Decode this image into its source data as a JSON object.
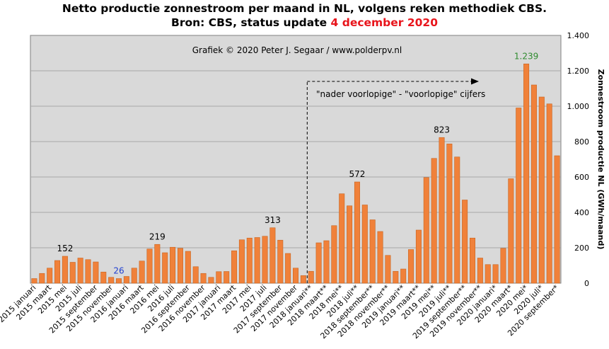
{
  "title": {
    "line1": "Netto productie zonnestroom per maand in NL, volgens reken methodiek CBS.",
    "line2_prefix": "Bron: CBS, status update ",
    "line2_date": "4 december 2020"
  },
  "credit": "Grafiek  © 2020  Peter J. Segaar / www.polderpv.nl",
  "arrow_label": "\"nader  voorlopige\"  - \"voorlopige\"  cijfers",
  "colors": {
    "bar": "#f0813a",
    "bar_edge": "#c86520",
    "plot_bg": "#d9d9d9",
    "grid": "#a6a6a6",
    "peak_label": "#2e8b2e",
    "min_label": "#1f3fd0",
    "date": "#e8141b"
  },
  "chart_data": {
    "type": "bar",
    "ylabel": "Zonnestroom productie NL (GWh/maand)",
    "ylim": [
      0,
      1400
    ],
    "yticks": [
      0,
      200,
      400,
      600,
      800,
      1000,
      1200,
      1400
    ],
    "ytick_labels": [
      "0",
      "200",
      "400",
      "600",
      "800",
      "1.000",
      "1.200",
      "1.400"
    ],
    "y_axis_side": "right",
    "grid": true,
    "categories": [
      "2015 januari",
      "2015 februari",
      "2015 maart",
      "2015 april",
      "2015 mei",
      "2015 juni",
      "2015 juli",
      "2015 augustus",
      "2015 september",
      "2015 oktober",
      "2015 november",
      "2015 december",
      "2016 januari",
      "2016 februari",
      "2016 maart",
      "2016 april",
      "2016 mei",
      "2016 juni",
      "2016 juli",
      "2016 augustus",
      "2016 september",
      "2016 oktober",
      "2016 november",
      "2016 december",
      "2017 januari",
      "2017 februari",
      "2017 maart",
      "2017 april",
      "2017 mei",
      "2017 juni",
      "2017 juli",
      "2017 augustus",
      "2017 september",
      "2017 oktober",
      "2017 november",
      "2017 december",
      "2018 januari**",
      "2018 februari**",
      "2018 maart**",
      "2018 april**",
      "2018 mei**",
      "2018 juni**",
      "2018 juli**",
      "2018 augustus**",
      "2018 september**",
      "2018 oktober**",
      "2018 november**",
      "2018 december**",
      "2019 januari**",
      "2019 februari**",
      "2019 maart**",
      "2019 april**",
      "2019 mei**",
      "2019 juni**",
      "2019 juli**",
      "2019 augustus**",
      "2019 september**",
      "2019 oktober**",
      "2019 november**",
      "2019 december**",
      "2020 januari*",
      "2020 februari*",
      "2020 maart*",
      "2020 april*",
      "2020 mei*",
      "2020 juni*",
      "2020 juli*",
      "2020 augustus*",
      "2020 september*"
    ],
    "visible_tick_labels": [
      "2015 januari",
      "2015 maart",
      "2015 mei",
      "2015 juli",
      "2015 september",
      "2015 november",
      "2016 januari",
      "2016 maart",
      "2016 mei",
      "2016 juli",
      "2016 september",
      "2016 november",
      "2017 januari",
      "2017 maart",
      "2017 mei",
      "2017 juli",
      "2017 september",
      "2017 november",
      "2018 januari**",
      "2018 maart**",
      "2018 mei**",
      "2018 juli**",
      "2018 september**",
      "2018 november**",
      "2019 januari**",
      "2019 maart**",
      "2019 mei**",
      "2019 juli**",
      "2019 september**",
      "2019 november**",
      "2020 januari*",
      "2020 maart*",
      "2020 mei*",
      "2020 juli*",
      "2020 september*"
    ],
    "values": [
      26,
      55,
      85,
      128,
      152,
      118,
      142,
      133,
      120,
      63,
      33,
      26,
      38,
      85,
      125,
      193,
      219,
      172,
      203,
      197,
      180,
      93,
      55,
      33,
      65,
      66,
      183,
      245,
      255,
      258,
      265,
      313,
      243,
      168,
      85,
      43,
      67,
      228,
      240,
      325,
      505,
      437,
      572,
      442,
      358,
      292,
      157,
      67,
      80,
      190,
      300,
      597,
      705,
      823,
      787,
      713,
      470,
      255,
      142,
      105,
      105,
      197,
      590,
      990,
      1239,
      1120,
      1052,
      1013,
      720
    ],
    "data_labels": [
      {
        "index": 4,
        "text": "152"
      },
      {
        "index": 11,
        "text": "26"
      },
      {
        "index": 16,
        "text": "219"
      },
      {
        "index": 31,
        "text": "313"
      },
      {
        "index": 42,
        "text": "572"
      },
      {
        "index": 53,
        "text": "823"
      },
      {
        "index": 64,
        "text": "1.239"
      }
    ],
    "preliminary_arrow_from_index": 35
  }
}
